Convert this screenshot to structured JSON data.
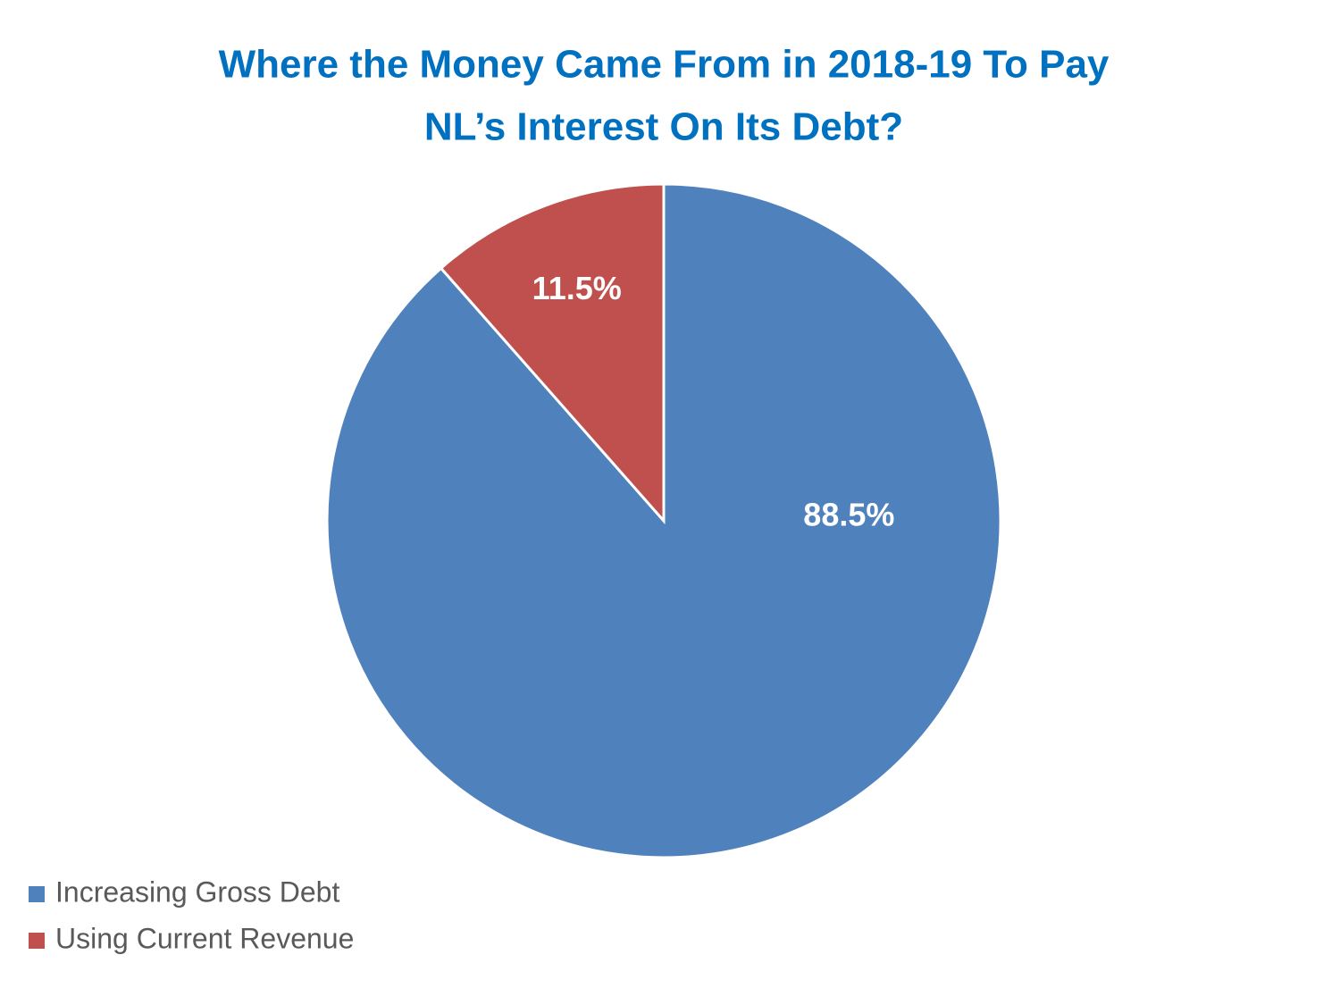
{
  "chart_data": {
    "type": "pie",
    "title": [
      "Where the Money Came From in 2018-19 To Pay",
      "NL’s Interest On Its Debt?"
    ],
    "categories": [
      "Increasing Gross Debt",
      "Using Current Revenue"
    ],
    "values": [
      88.5,
      11.5
    ],
    "value_labels": [
      "88.5%",
      "11.5%"
    ],
    "colors": [
      "#4f81bd",
      "#c0504d"
    ],
    "legend": "bottom-left"
  }
}
